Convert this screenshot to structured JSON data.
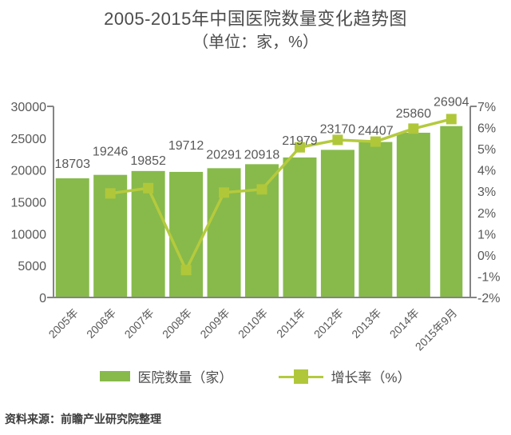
{
  "title": "2005-2015年中国医院数量变化趋势图",
  "subtitle": "（单位：家，%）",
  "source": "资料来源：前瞻产业研究院整理",
  "colors": {
    "bar": "#87ba4b",
    "line": "#b5ca3d",
    "marker": "#b0c73a",
    "text": "#595959",
    "axis": "#848484",
    "title": "#4c4c4c",
    "footer": "#3c3c3c"
  },
  "chart_data": {
    "type": "combo-bar-line",
    "categories": [
      "2005年",
      "2006年",
      "2007年",
      "2008年",
      "2009年",
      "2010年",
      "2011年",
      "2012年",
      "2013年",
      "2014年",
      "2015年9月"
    ],
    "series": [
      {
        "name": "医院数量（家）",
        "type": "bar",
        "axis": "left",
        "values": [
          18703,
          19246,
          19852,
          19712,
          20291,
          20918,
          21979,
          23170,
          24407,
          25860,
          26904
        ]
      },
      {
        "name": "增长率（%）",
        "type": "line",
        "axis": "right",
        "values": [
          null,
          2.9,
          3.15,
          -0.71,
          2.94,
          3.09,
          5.07,
          5.42,
          5.34,
          5.95,
          6.4
        ]
      }
    ],
    "left_axis": {
      "min": 0,
      "max": 30000,
      "tick_labels": [
        "30000",
        "25000",
        "20000",
        "15000",
        "10000",
        "5000",
        "0"
      ]
    },
    "right_axis": {
      "min": -2,
      "max": 7,
      "tick_labels": [
        "7%",
        "6%",
        "5%",
        "4%",
        "3%",
        "2%",
        "1%",
        "0%",
        "-1%",
        "-2%"
      ]
    },
    "grid": false,
    "legend_position": "bottom"
  }
}
